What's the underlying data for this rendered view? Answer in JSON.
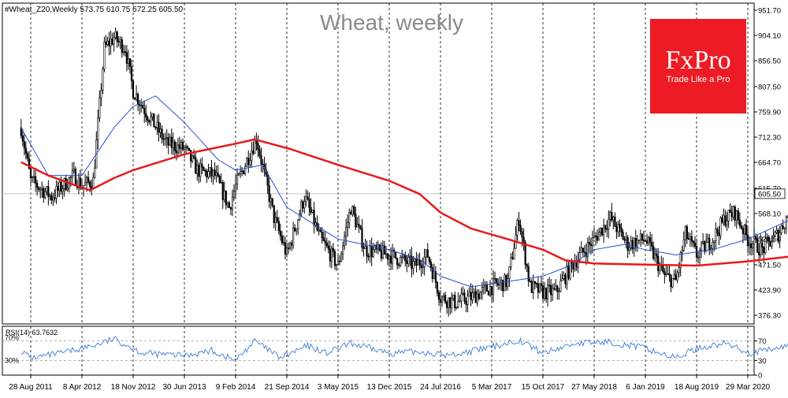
{
  "chart_data": {
    "type": "candlestick",
    "title": "Wheat, weekly",
    "header": "#Wheat_Z20,Weekly  573.75 610.75 572.25 605.50",
    "last_price_label": "605.50",
    "price_axis_ticks": [
      "951.70",
      "904.10",
      "856.50",
      "807.50",
      "759.90",
      "712.30",
      "664.70",
      "615.70",
      "568.10",
      "520.50",
      "471.50",
      "423.90",
      "376.30"
    ],
    "price_axis_values": [
      951.7,
      904.1,
      856.5,
      807.5,
      759.9,
      712.3,
      664.7,
      615.7,
      568.1,
      520.5,
      471.5,
      423.9,
      376.3
    ],
    "ylim": [
      360,
      965
    ],
    "x_tick_labels": [
      "28 Aug 2011",
      "8 Apr 2012",
      "18 Nov 2012",
      "30 Jun 2013",
      "9 Feb 2014",
      "21 Sep 2014",
      "3 May 2015",
      "13 Dec 2015",
      "24 Jul 2016",
      "5 Mar 2017",
      "15 Oct 2017",
      "27 May 2018",
      "6 Jan 2019",
      "18 Aug 2019",
      "29 Mar 2020"
    ],
    "price_keypoints": [
      {
        "date": "2011-07-17",
        "close": 730
      },
      {
        "date": "2011-08-28",
        "close": 630
      },
      {
        "date": "2011-11-27",
        "close": 600
      },
      {
        "date": "2012-03-04",
        "close": 640
      },
      {
        "date": "2012-04-08",
        "close": 620
      },
      {
        "date": "2012-05-27",
        "close": 630
      },
      {
        "date": "2012-07-15",
        "close": 880
      },
      {
        "date": "2012-08-26",
        "close": 900
      },
      {
        "date": "2012-10-14",
        "close": 880
      },
      {
        "date": "2012-11-18",
        "close": 800
      },
      {
        "date": "2013-01-13",
        "close": 760
      },
      {
        "date": "2013-04-14",
        "close": 700
      },
      {
        "date": "2013-06-30",
        "close": 690
      },
      {
        "date": "2013-08-25",
        "close": 650
      },
      {
        "date": "2013-11-10",
        "close": 640
      },
      {
        "date": "2014-01-12",
        "close": 580
      },
      {
        "date": "2014-02-09",
        "close": 620
      },
      {
        "date": "2014-05-11",
        "close": 710
      },
      {
        "date": "2014-07-27",
        "close": 560
      },
      {
        "date": "2014-09-21",
        "close": 490
      },
      {
        "date": "2014-12-07",
        "close": 600
      },
      {
        "date": "2015-02-15",
        "close": 520
      },
      {
        "date": "2015-05-03",
        "close": 470
      },
      {
        "date": "2015-06-28",
        "close": 580
      },
      {
        "date": "2015-08-30",
        "close": 500
      },
      {
        "date": "2015-12-13",
        "close": 490
      },
      {
        "date": "2016-04-03",
        "close": 470
      },
      {
        "date": "2016-05-29",
        "close": 490
      },
      {
        "date": "2016-07-24",
        "close": 410
      },
      {
        "date": "2016-09-25",
        "close": 400
      },
      {
        "date": "2016-12-04",
        "close": 410
      },
      {
        "date": "2017-03-05",
        "close": 430
      },
      {
        "date": "2017-05-14",
        "close": 440
      },
      {
        "date": "2017-07-02",
        "close": 560
      },
      {
        "date": "2017-08-20",
        "close": 430
      },
      {
        "date": "2017-10-15",
        "close": 420
      },
      {
        "date": "2017-12-10",
        "close": 420
      },
      {
        "date": "2018-02-18",
        "close": 470
      },
      {
        "date": "2018-05-27",
        "close": 520
      },
      {
        "date": "2018-08-05",
        "close": 560
      },
      {
        "date": "2018-10-21",
        "close": 510
      },
      {
        "date": "2019-01-06",
        "close": 520
      },
      {
        "date": "2019-03-31",
        "close": 450
      },
      {
        "date": "2019-05-19",
        "close": 440
      },
      {
        "date": "2019-06-30",
        "close": 530
      },
      {
        "date": "2019-08-18",
        "close": 490
      },
      {
        "date": "2019-10-27",
        "close": 520
      },
      {
        "date": "2019-12-22",
        "close": 560
      },
      {
        "date": "2020-02-02",
        "close": 570
      },
      {
        "date": "2020-03-29",
        "close": 520
      },
      {
        "date": "2020-05-31",
        "close": 500
      },
      {
        "date": "2020-08-09",
        "close": 530
      },
      {
        "date": "2020-09-27",
        "close": 570
      },
      {
        "date": "2020-10-18",
        "close": 605.5
      }
    ],
    "moving_average_red": [
      {
        "date": "2011-07-17",
        "value": 665
      },
      {
        "date": "2011-11-13",
        "value": 640
      },
      {
        "date": "2012-03-18",
        "value": 620
      },
      {
        "date": "2012-05-13",
        "value": 612
      },
      {
        "date": "2012-08-26",
        "value": 635
      },
      {
        "date": "2012-11-18",
        "value": 650
      },
      {
        "date": "2013-06-30",
        "value": 680
      },
      {
        "date": "2014-02-09",
        "value": 700
      },
      {
        "date": "2014-05-04",
        "value": 708
      },
      {
        "date": "2014-10-05",
        "value": 690
      },
      {
        "date": "2015-05-03",
        "value": 660
      },
      {
        "date": "2015-12-13",
        "value": 630
      },
      {
        "date": "2016-04-24",
        "value": 605
      },
      {
        "date": "2016-07-24",
        "value": 570
      },
      {
        "date": "2016-12-04",
        "value": 540
      },
      {
        "date": "2017-05-14",
        "value": 520
      },
      {
        "date": "2017-10-15",
        "value": 500
      },
      {
        "date": "2018-01-21",
        "value": 480
      },
      {
        "date": "2018-05-27",
        "value": 474
      },
      {
        "date": "2019-01-06",
        "value": 472
      },
      {
        "date": "2019-08-18",
        "value": 470
      },
      {
        "date": "2020-03-29",
        "value": 478
      },
      {
        "date": "2020-10-18",
        "value": 488
      }
    ],
    "moving_average_blue": [
      {
        "date": "2011-07-17",
        "value": 730
      },
      {
        "date": "2011-11-13",
        "value": 640
      },
      {
        "date": "2012-04-08",
        "value": 640
      },
      {
        "date": "2012-08-26",
        "value": 730
      },
      {
        "date": "2012-11-18",
        "value": 770
      },
      {
        "date": "2013-02-24",
        "value": 790
      },
      {
        "date": "2013-06-30",
        "value": 740
      },
      {
        "date": "2013-11-24",
        "value": 670
      },
      {
        "date": "2014-02-09",
        "value": 650
      },
      {
        "date": "2014-06-08",
        "value": 660
      },
      {
        "date": "2014-09-21",
        "value": 580
      },
      {
        "date": "2015-01-11",
        "value": 550
      },
      {
        "date": "2015-05-03",
        "value": 520
      },
      {
        "date": "2015-12-13",
        "value": 500
      },
      {
        "date": "2016-05-01",
        "value": 480
      },
      {
        "date": "2016-07-24",
        "value": 450
      },
      {
        "date": "2016-12-04",
        "value": 430
      },
      {
        "date": "2017-05-14",
        "value": 440
      },
      {
        "date": "2017-10-15",
        "value": 450
      },
      {
        "date": "2018-02-11",
        "value": 470
      },
      {
        "date": "2018-05-27",
        "value": 500
      },
      {
        "date": "2018-10-07",
        "value": 510
      },
      {
        "date": "2019-01-06",
        "value": 500
      },
      {
        "date": "2019-05-19",
        "value": 490
      },
      {
        "date": "2019-10-27",
        "value": 500
      },
      {
        "date": "2020-03-29",
        "value": 520
      },
      {
        "date": "2020-10-18",
        "value": 560
      }
    ],
    "rsi": {
      "label": "RSI(14) 63.7632",
      "levels": [
        70,
        30
      ],
      "level_labels": [
        "70%",
        "30%"
      ],
      "axis_ticks": [
        "70",
        "30",
        "0"
      ],
      "axis_values": [
        70,
        30,
        0
      ],
      "ylim": [
        0,
        100
      ],
      "keypoints": [
        {
          "date": "2011-07-17",
          "value": 50
        },
        {
          "date": "2011-08-28",
          "value": 35
        },
        {
          "date": "2012-01-08",
          "value": 45
        },
        {
          "date": "2012-06-10",
          "value": 62
        },
        {
          "date": "2012-08-26",
          "value": 74
        },
        {
          "date": "2012-10-28",
          "value": 60
        },
        {
          "date": "2012-12-30",
          "value": 45
        },
        {
          "date": "2013-06-30",
          "value": 40
        },
        {
          "date": "2013-10-27",
          "value": 50
        },
        {
          "date": "2014-02-09",
          "value": 30
        },
        {
          "date": "2014-05-04",
          "value": 70
        },
        {
          "date": "2014-08-24",
          "value": 35
        },
        {
          "date": "2014-12-21",
          "value": 60
        },
        {
          "date": "2015-03-15",
          "value": 45
        },
        {
          "date": "2015-06-28",
          "value": 65
        },
        {
          "date": "2015-12-13",
          "value": 45
        },
        {
          "date": "2016-05-01",
          "value": 48
        },
        {
          "date": "2016-08-28",
          "value": 40
        },
        {
          "date": "2017-02-12",
          "value": 55
        },
        {
          "date": "2017-07-02",
          "value": 72
        },
        {
          "date": "2017-10-15",
          "value": 45
        },
        {
          "date": "2018-03-04",
          "value": 65
        },
        {
          "date": "2018-08-05",
          "value": 68
        },
        {
          "date": "2019-01-06",
          "value": 55
        },
        {
          "date": "2019-05-19",
          "value": 35
        },
        {
          "date": "2019-08-18",
          "value": 55
        },
        {
          "date": "2019-12-22",
          "value": 65
        },
        {
          "date": "2020-04-12",
          "value": 45
        },
        {
          "date": "2020-08-09",
          "value": 55
        },
        {
          "date": "2020-10-18",
          "value": 63.76
        }
      ]
    },
    "grid": true,
    "legend": "none"
  },
  "brand": {
    "name": "FxPro",
    "tagline": "Trade Like a Pro"
  },
  "colors": {
    "background": "#ffffff",
    "candles": "#000000",
    "ma_red": "#e8191c",
    "ma_blue": "#2a4fd6",
    "rsi_line": "#3b7dd8",
    "brand": "#ed1c24",
    "grid": "#000000",
    "price_line": "#b0b0b0"
  }
}
